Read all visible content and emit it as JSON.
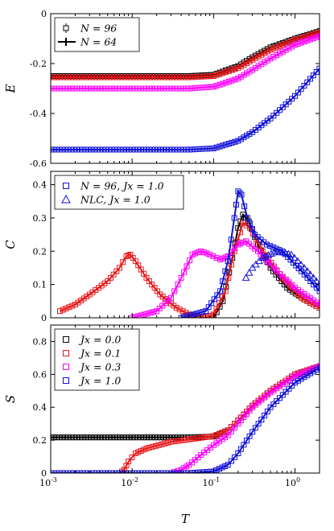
{
  "figure": {
    "xlabel": "T"
  },
  "colors": {
    "black": "#000000",
    "red": "#e8181b",
    "magenta": "#ff00ff",
    "blue": "#1010d8"
  },
  "chart_data": [
    {
      "type": "line",
      "ylabel": "E",
      "x_scale": "log",
      "xlim": [
        0.001,
        2
      ],
      "ylim": [
        -0.6,
        0
      ],
      "y_ticks": [
        "0",
        "-0.2",
        "-0.4",
        "-0.6"
      ],
      "legend_position": "top-left",
      "legend": [
        "N = 96",
        "N = 64"
      ],
      "series": [
        {
          "color": "black",
          "points": [
            [
              0.001,
              -0.25
            ],
            [
              0.01,
              -0.25
            ],
            [
              0.05,
              -0.25
            ],
            [
              0.1,
              -0.245
            ],
            [
              0.2,
              -0.21
            ],
            [
              0.3,
              -0.175
            ],
            [
              0.5,
              -0.135
            ],
            [
              1.0,
              -0.1
            ],
            [
              2.0,
              -0.07
            ]
          ]
        },
        {
          "color": "red",
          "points": [
            [
              0.001,
              -0.255
            ],
            [
              0.01,
              -0.255
            ],
            [
              0.05,
              -0.255
            ],
            [
              0.1,
              -0.25
            ],
            [
              0.2,
              -0.218
            ],
            [
              0.3,
              -0.185
            ],
            [
              0.5,
              -0.145
            ],
            [
              1.0,
              -0.105
            ],
            [
              2.0,
              -0.075
            ]
          ]
        },
        {
          "color": "magenta",
          "points": [
            [
              0.001,
              -0.3
            ],
            [
              0.01,
              -0.3
            ],
            [
              0.05,
              -0.3
            ],
            [
              0.1,
              -0.293
            ],
            [
              0.2,
              -0.26
            ],
            [
              0.3,
              -0.225
            ],
            [
              0.5,
              -0.18
            ],
            [
              1.0,
              -0.125
            ],
            [
              2.0,
              -0.09
            ]
          ]
        },
        {
          "color": "blue",
          "points": [
            [
              0.001,
              -0.545
            ],
            [
              0.01,
              -0.545
            ],
            [
              0.05,
              -0.545
            ],
            [
              0.1,
              -0.54
            ],
            [
              0.2,
              -0.51
            ],
            [
              0.3,
              -0.475
            ],
            [
              0.5,
              -0.42
            ],
            [
              1.0,
              -0.33
            ],
            [
              2.0,
              -0.22
            ]
          ]
        }
      ]
    },
    {
      "type": "line",
      "ylabel": "C",
      "x_scale": "log",
      "xlim": [
        0.001,
        2
      ],
      "ylim": [
        0,
        0.44
      ],
      "y_ticks": [
        "0",
        "0.1",
        "0.2",
        "0.3",
        "0.4"
      ],
      "legend_position": "top-left",
      "legend": [
        "N = 96, Jx = 1.0",
        "NLC, Jx = 1.0"
      ],
      "series": [
        {
          "color": "black",
          "points": [
            [
              0.1,
              0.0
            ],
            [
              0.13,
              0.05
            ],
            [
              0.17,
              0.18
            ],
            [
              0.2,
              0.27
            ],
            [
              0.23,
              0.31
            ],
            [
              0.27,
              0.29
            ],
            [
              0.35,
              0.22
            ],
            [
              0.5,
              0.15
            ],
            [
              0.8,
              0.09
            ],
            [
              1.3,
              0.055
            ],
            [
              2.0,
              0.03
            ]
          ]
        },
        {
          "color": "red",
          "points": [
            [
              0.0013,
              0.02
            ],
            [
              0.002,
              0.04
            ],
            [
              0.003,
              0.07
            ],
            [
              0.005,
              0.11
            ],
            [
              0.007,
              0.15
            ],
            [
              0.0085,
              0.185
            ],
            [
              0.0095,
              0.19
            ],
            [
              0.011,
              0.17
            ],
            [
              0.015,
              0.12
            ],
            [
              0.022,
              0.07
            ],
            [
              0.035,
              0.03
            ],
            [
              0.05,
              0.01
            ],
            [
              0.08,
              0.0
            ],
            [
              0.1,
              0.01
            ],
            [
              0.14,
              0.08
            ],
            [
              0.18,
              0.2
            ],
            [
              0.23,
              0.285
            ],
            [
              0.28,
              0.27
            ],
            [
              0.4,
              0.2
            ],
            [
              0.7,
              0.12
            ],
            [
              1.2,
              0.06
            ],
            [
              2.0,
              0.03
            ]
          ]
        },
        {
          "color": "magenta",
          "points": [
            [
              0.01,
              0.0
            ],
            [
              0.02,
              0.02
            ],
            [
              0.03,
              0.06
            ],
            [
              0.04,
              0.12
            ],
            [
              0.055,
              0.19
            ],
            [
              0.07,
              0.2
            ],
            [
              0.09,
              0.19
            ],
            [
              0.12,
              0.175
            ],
            [
              0.15,
              0.185
            ],
            [
              0.2,
              0.22
            ],
            [
              0.25,
              0.23
            ],
            [
              0.35,
              0.2
            ],
            [
              0.6,
              0.14
            ],
            [
              1.0,
              0.09
            ],
            [
              2.0,
              0.04
            ]
          ]
        },
        {
          "color": "blue",
          "points": [
            [
              0.04,
              0.0
            ],
            [
              0.08,
              0.02
            ],
            [
              0.12,
              0.08
            ],
            [
              0.15,
              0.17
            ],
            [
              0.18,
              0.3
            ],
            [
              0.2,
              0.38
            ],
            [
              0.22,
              0.37
            ],
            [
              0.26,
              0.3
            ],
            [
              0.32,
              0.25
            ],
            [
              0.45,
              0.22
            ],
            [
              0.7,
              0.2
            ],
            [
              1.2,
              0.14
            ],
            [
              2.0,
              0.08
            ]
          ]
        },
        {
          "color": "blue",
          "name": "NLC",
          "points": [
            [
              0.25,
              0.12
            ],
            [
              0.3,
              0.15
            ],
            [
              0.4,
              0.18
            ],
            [
              0.6,
              0.2
            ],
            [
              0.9,
              0.19
            ],
            [
              1.3,
              0.15
            ],
            [
              2.0,
              0.1
            ]
          ]
        }
      ]
    },
    {
      "type": "line",
      "ylabel": "S",
      "x_scale": "log",
      "xlim": [
        0.001,
        2
      ],
      "ylim": [
        0,
        0.9
      ],
      "y_ticks": [
        "0",
        "0.2",
        "0.4",
        "0.6",
        "0.8"
      ],
      "legend_position": "top-left",
      "legend": [
        "Jx = 0.0",
        "Jx = 0.1",
        "Jx = 0.3",
        "Jx = 1.0"
      ],
      "series": [
        {
          "color": "black",
          "points": [
            [
              0.001,
              0.217
            ],
            [
              0.01,
              0.217
            ],
            [
              0.05,
              0.217
            ],
            [
              0.1,
              0.222
            ],
            [
              0.15,
              0.26
            ],
            [
              0.2,
              0.32
            ],
            [
              0.3,
              0.41
            ],
            [
              0.5,
              0.5
            ],
            [
              1.0,
              0.6
            ],
            [
              2.0,
              0.65
            ]
          ]
        },
        {
          "color": "red",
          "points": [
            [
              0.007,
              0.0
            ],
            [
              0.008,
              0.02
            ],
            [
              0.009,
              0.07
            ],
            [
              0.011,
              0.12
            ],
            [
              0.015,
              0.15
            ],
            [
              0.03,
              0.19
            ],
            [
              0.06,
              0.21
            ],
            [
              0.1,
              0.225
            ],
            [
              0.15,
              0.26
            ],
            [
              0.2,
              0.32
            ],
            [
              0.3,
              0.41
            ],
            [
              0.5,
              0.5
            ],
            [
              1.0,
              0.6
            ],
            [
              2.0,
              0.65
            ]
          ]
        },
        {
          "color": "magenta",
          "points": [
            [
              0.03,
              0.0
            ],
            [
              0.04,
              0.02
            ],
            [
              0.05,
              0.05
            ],
            [
              0.07,
              0.11
            ],
            [
              0.1,
              0.17
            ],
            [
              0.15,
              0.23
            ],
            [
              0.2,
              0.3
            ],
            [
              0.3,
              0.4
            ],
            [
              0.5,
              0.49
            ],
            [
              1.0,
              0.59
            ],
            [
              2.0,
              0.65
            ]
          ]
        },
        {
          "color": "blue",
          "points": [
            [
              0.001,
              0.0
            ],
            [
              0.05,
              0.0
            ],
            [
              0.1,
              0.01
            ],
            [
              0.15,
              0.05
            ],
            [
              0.2,
              0.12
            ],
            [
              0.3,
              0.25
            ],
            [
              0.5,
              0.4
            ],
            [
              1.0,
              0.55
            ],
            [
              2.0,
              0.64
            ]
          ]
        }
      ]
    }
  ]
}
